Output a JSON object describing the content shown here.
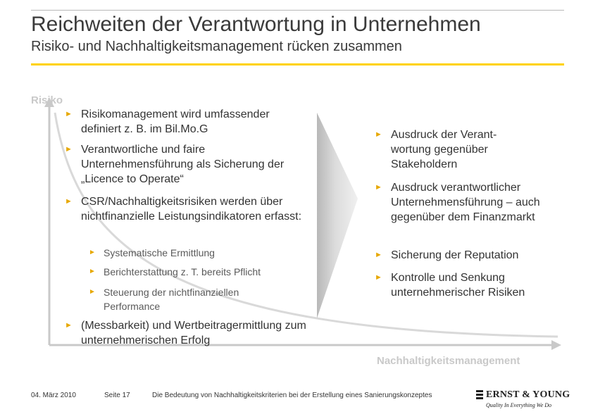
{
  "header": {
    "title": "Reichweiten der Verantwortung in Unternehmen",
    "subtitle": "Risiko- und Nachhaltigkeitsmanagement rücken zusammen"
  },
  "axes": {
    "y_label": "Risiko",
    "x_label": "Nachhaltigkeitsmanagement"
  },
  "left_bullets": [
    "Risikomanagement wird umfassender definiert z. B. im Bil.Mo.G",
    "Verantwortliche und faire Unternehmensführung als Sicherung der „Licence to Operate“",
    "CSR/Nachhaltigkeitsrisiken werden über nichtfinanzielle Leistungsindikatoren erfasst:",
    "(Messbarkeit) und Wertbeitragermittlung zum unternehmerischen Erfolg"
  ],
  "left_subbullets": [
    "Systematische Ermittlung",
    "Berichterstattung z. T. bereits Pflicht",
    "Steuerung der nichtfinanziellen Performance"
  ],
  "right_bullets": [
    "Ausdruck der Verant-wortung gegenüber Stakeholdern",
    "Ausdruck verantwortlicher Unternehmensführung – auch gegenüber dem Finanzmarkt",
    "Sicherung der Reputation",
    "Kontrolle und Senkung unternehmerischer Risiken"
  ],
  "footer": {
    "date": "04. März 2010",
    "page": "Seite 17",
    "description": "Die Bedeutung von Nachhaltigkeitskriterien bei der Erstellung eines Sanierungskonzeptes"
  },
  "logo": {
    "brand": "ERNST & YOUNG",
    "tagline": "Quality In Everything We Do"
  },
  "colors": {
    "accent_yellow": "#ffd200",
    "bullet_orange": "#e7a800",
    "axis_grey": "#c9c9c9",
    "arrow_grey": "#d4d4d4"
  }
}
